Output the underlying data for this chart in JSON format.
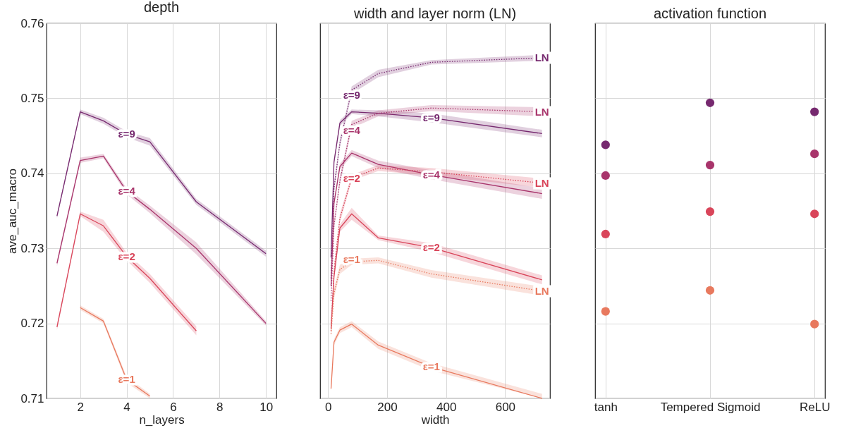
{
  "chart_data": [
    {
      "type": "line",
      "title": "depth",
      "xlabel": "n_layers",
      "ylabel": "ave_auc_macro",
      "x": [
        1,
        2,
        3,
        4,
        5,
        7,
        10
      ],
      "xlim": [
        0.55,
        10.45
      ],
      "xticks": [
        2,
        4,
        6,
        8,
        10
      ],
      "ylim": [
        0.71,
        0.76
      ],
      "yticks": [
        0.71,
        0.72,
        0.73,
        0.74,
        0.75,
        0.76
      ],
      "grid": true,
      "line_style": "solid",
      "series": [
        {
          "color": "#76296f",
          "values": [
            0.7343,
            0.7482,
            0.747,
            0.7452,
            0.7442,
            0.7362,
            0.7293
          ],
          "lower": [
            0.734,
            0.7479,
            0.7466,
            0.7448,
            0.7437,
            0.7358,
            0.7289
          ],
          "upper": [
            0.7346,
            0.7485,
            0.7474,
            0.7456,
            0.7447,
            0.7366,
            0.7297
          ]
        },
        {
          "color": "#a8346b",
          "values": [
            0.728,
            0.7417,
            0.7423,
            0.7376,
            0.7352,
            0.73,
            0.72
          ],
          "lower": [
            0.7276,
            0.7414,
            0.742,
            0.7372,
            0.7347,
            0.7292,
            0.7197
          ],
          "upper": [
            0.7284,
            0.7421,
            0.7426,
            0.738,
            0.7357,
            0.7308,
            0.7203
          ]
        },
        {
          "color": "#d9455a",
          "values": [
            0.7195,
            0.7346,
            0.733,
            0.7289,
            0.726,
            0.719,
            null
          ],
          "lower": [
            0.7191,
            0.7343,
            0.7322,
            0.7284,
            0.7254,
            0.7184,
            null
          ],
          "upper": [
            0.7199,
            0.7349,
            0.7338,
            0.7294,
            0.7266,
            0.7196,
            null
          ]
        },
        {
          "color": "#e8795e",
          "values": [
            null,
            0.7221,
            0.7203,
            0.7125,
            0.7103,
            null,
            null
          ],
          "lower": [
            null,
            0.7218,
            0.72,
            0.7121,
            0.71,
            null,
            null
          ],
          "upper": [
            null,
            0.7224,
            0.7206,
            0.7129,
            0.7106,
            null,
            null
          ]
        }
      ],
      "annotations": [
        {
          "text": "ε=9",
          "x": 4,
          "y": 0.7452
        },
        {
          "text": "ε=4",
          "x": 4,
          "y": 0.7376
        },
        {
          "text": "ε=2",
          "x": 4,
          "y": 0.7289
        },
        {
          "text": "ε=1",
          "x": 4,
          "y": 0.7125
        }
      ]
    },
    {
      "type": "line",
      "title": "width and layer norm (LN)",
      "xlabel": "width",
      "x": [
        10,
        20,
        40,
        80,
        170,
        350,
        725
      ],
      "xlim": [
        -27,
        752
      ],
      "xticks": [
        0,
        200,
        400,
        600
      ],
      "ylim": [
        0.71,
        0.76
      ],
      "yticks": [
        0.71,
        0.72,
        0.73,
        0.74,
        0.75,
        0.76
      ],
      "tick_labels": "x",
      "grid": true,
      "series": [
        {
          "color": "#76296f",
          "line_style": "solid",
          "values": [
            0.7288,
            0.7415,
            0.7467,
            0.7482,
            0.748,
            0.7474,
            0.7453
          ],
          "lower": [
            0.7284,
            0.7411,
            0.7463,
            0.7479,
            0.7476,
            0.7468,
            0.7448
          ],
          "upper": [
            0.7292,
            0.7419,
            0.7471,
            0.7485,
            0.7484,
            0.748,
            0.7458
          ]
        },
        {
          "color": "#76296f",
          "line_style": "dotted",
          "values": [
            0.726,
            0.738,
            0.744,
            0.7511,
            0.7533,
            0.7548,
            0.7554
          ],
          "lower": [
            0.7255,
            0.7374,
            0.7434,
            0.7506,
            0.7528,
            0.7545,
            0.755
          ],
          "upper": [
            0.7265,
            0.7386,
            0.7446,
            0.7516,
            0.7538,
            0.7551,
            0.7558
          ]
        },
        {
          "color": "#a8346b",
          "line_style": "solid",
          "values": [
            0.725,
            0.736,
            0.7409,
            0.7427,
            0.7412,
            0.7398,
            0.7373
          ],
          "lower": [
            0.7246,
            0.7356,
            0.7405,
            0.7423,
            0.7407,
            0.7392,
            0.7366
          ],
          "upper": [
            0.7254,
            0.7364,
            0.7413,
            0.7431,
            0.7417,
            0.7404,
            0.738
          ]
        },
        {
          "color": "#a8346b",
          "line_style": "dotted",
          "values": [
            0.723,
            0.733,
            0.739,
            0.7465,
            0.748,
            0.7487,
            0.7482
          ],
          "lower": [
            0.7225,
            0.7324,
            0.7384,
            0.746,
            0.7476,
            0.7483,
            0.7476
          ],
          "upper": [
            0.7235,
            0.7336,
            0.7396,
            0.747,
            0.7484,
            0.7491,
            0.7488
          ]
        },
        {
          "color": "#d9455a",
          "line_style": "solid",
          "values": [
            0.7193,
            0.7262,
            0.7327,
            0.7346,
            0.7314,
            0.7301,
            0.7258
          ],
          "lower": [
            0.7189,
            0.7258,
            0.7322,
            0.7338,
            0.7311,
            0.7295,
            0.7252
          ],
          "upper": [
            0.7197,
            0.7266,
            0.7332,
            0.7354,
            0.7317,
            0.7307,
            0.7264
          ]
        },
        {
          "color": "#d9455a",
          "line_style": "dotted",
          "values": [
            0.719,
            0.727,
            0.734,
            0.7394,
            0.7407,
            0.7402,
            0.7387
          ],
          "lower": [
            0.7185,
            0.7264,
            0.7334,
            0.739,
            0.7403,
            0.7397,
            0.7381
          ],
          "upper": [
            0.7195,
            0.7276,
            0.7346,
            0.7398,
            0.7411,
            0.7407,
            0.7393
          ]
        },
        {
          "color": "#e8795e",
          "line_style": "solid",
          "values": [
            0.7113,
            0.7175,
            0.7191,
            0.7199,
            0.7171,
            0.7142,
            0.71
          ],
          "lower": [
            0.711,
            0.7171,
            0.7187,
            0.7195,
            0.7166,
            0.7137,
            0.71
          ],
          "upper": [
            0.7116,
            0.7179,
            0.7195,
            0.7203,
            0.7176,
            0.7147,
            0.7106
          ]
        },
        {
          "color": "#e8795e",
          "line_style": "dotted",
          "values": [
            0.7186,
            0.724,
            0.7272,
            0.7282,
            0.7284,
            0.7266,
            0.7243
          ],
          "lower": [
            0.718,
            0.7233,
            0.7266,
            0.7278,
            0.728,
            0.7261,
            0.7237
          ],
          "upper": [
            0.7192,
            0.7247,
            0.7278,
            0.7286,
            0.7288,
            0.7271,
            0.7249
          ]
        }
      ],
      "annotations": [
        {
          "text": "ε=9",
          "x": 350,
          "y": 0.7474
        },
        {
          "text": "ε=4",
          "x": 350,
          "y": 0.7398
        },
        {
          "text": "ε=2",
          "x": 350,
          "y": 0.7301
        },
        {
          "text": "ε=1",
          "x": 350,
          "y": 0.7142
        },
        {
          "text": "ε=9",
          "x": 80,
          "y": 0.7504
        },
        {
          "text": "ε=4",
          "x": 80,
          "y": 0.7457
        },
        {
          "text": "ε=2",
          "x": 80,
          "y": 0.7393
        },
        {
          "text": "ε=1",
          "x": 80,
          "y": 0.7285
        },
        {
          "text": "LN",
          "x": 725,
          "y": 0.7554
        },
        {
          "text": "LN",
          "x": 725,
          "y": 0.7482
        },
        {
          "text": "LN",
          "x": 725,
          "y": 0.7387
        },
        {
          "text": "LN",
          "x": 725,
          "y": 0.7243
        }
      ]
    },
    {
      "type": "scatter",
      "title": "activation function",
      "categories": [
        "tanh",
        "Tempered Sigmoid",
        "ReLU"
      ],
      "ylim": [
        0.71,
        0.76
      ],
      "yticks": [
        0.71,
        0.72,
        0.73,
        0.74,
        0.75,
        0.76
      ],
      "tick_labels": "x",
      "grid": true,
      "marker": "circle",
      "series": [
        {
          "color": "#76296f",
          "values": [
            0.7438,
            0.7494,
            0.7482
          ]
        },
        {
          "color": "#a8346b",
          "values": [
            0.7397,
            0.7411,
            0.7426
          ]
        },
        {
          "color": "#d9455a",
          "values": [
            0.7319,
            0.7349,
            0.7346
          ]
        },
        {
          "color": "#e8795e",
          "values": [
            0.7216,
            0.7244,
            0.7199
          ]
        }
      ]
    }
  ]
}
